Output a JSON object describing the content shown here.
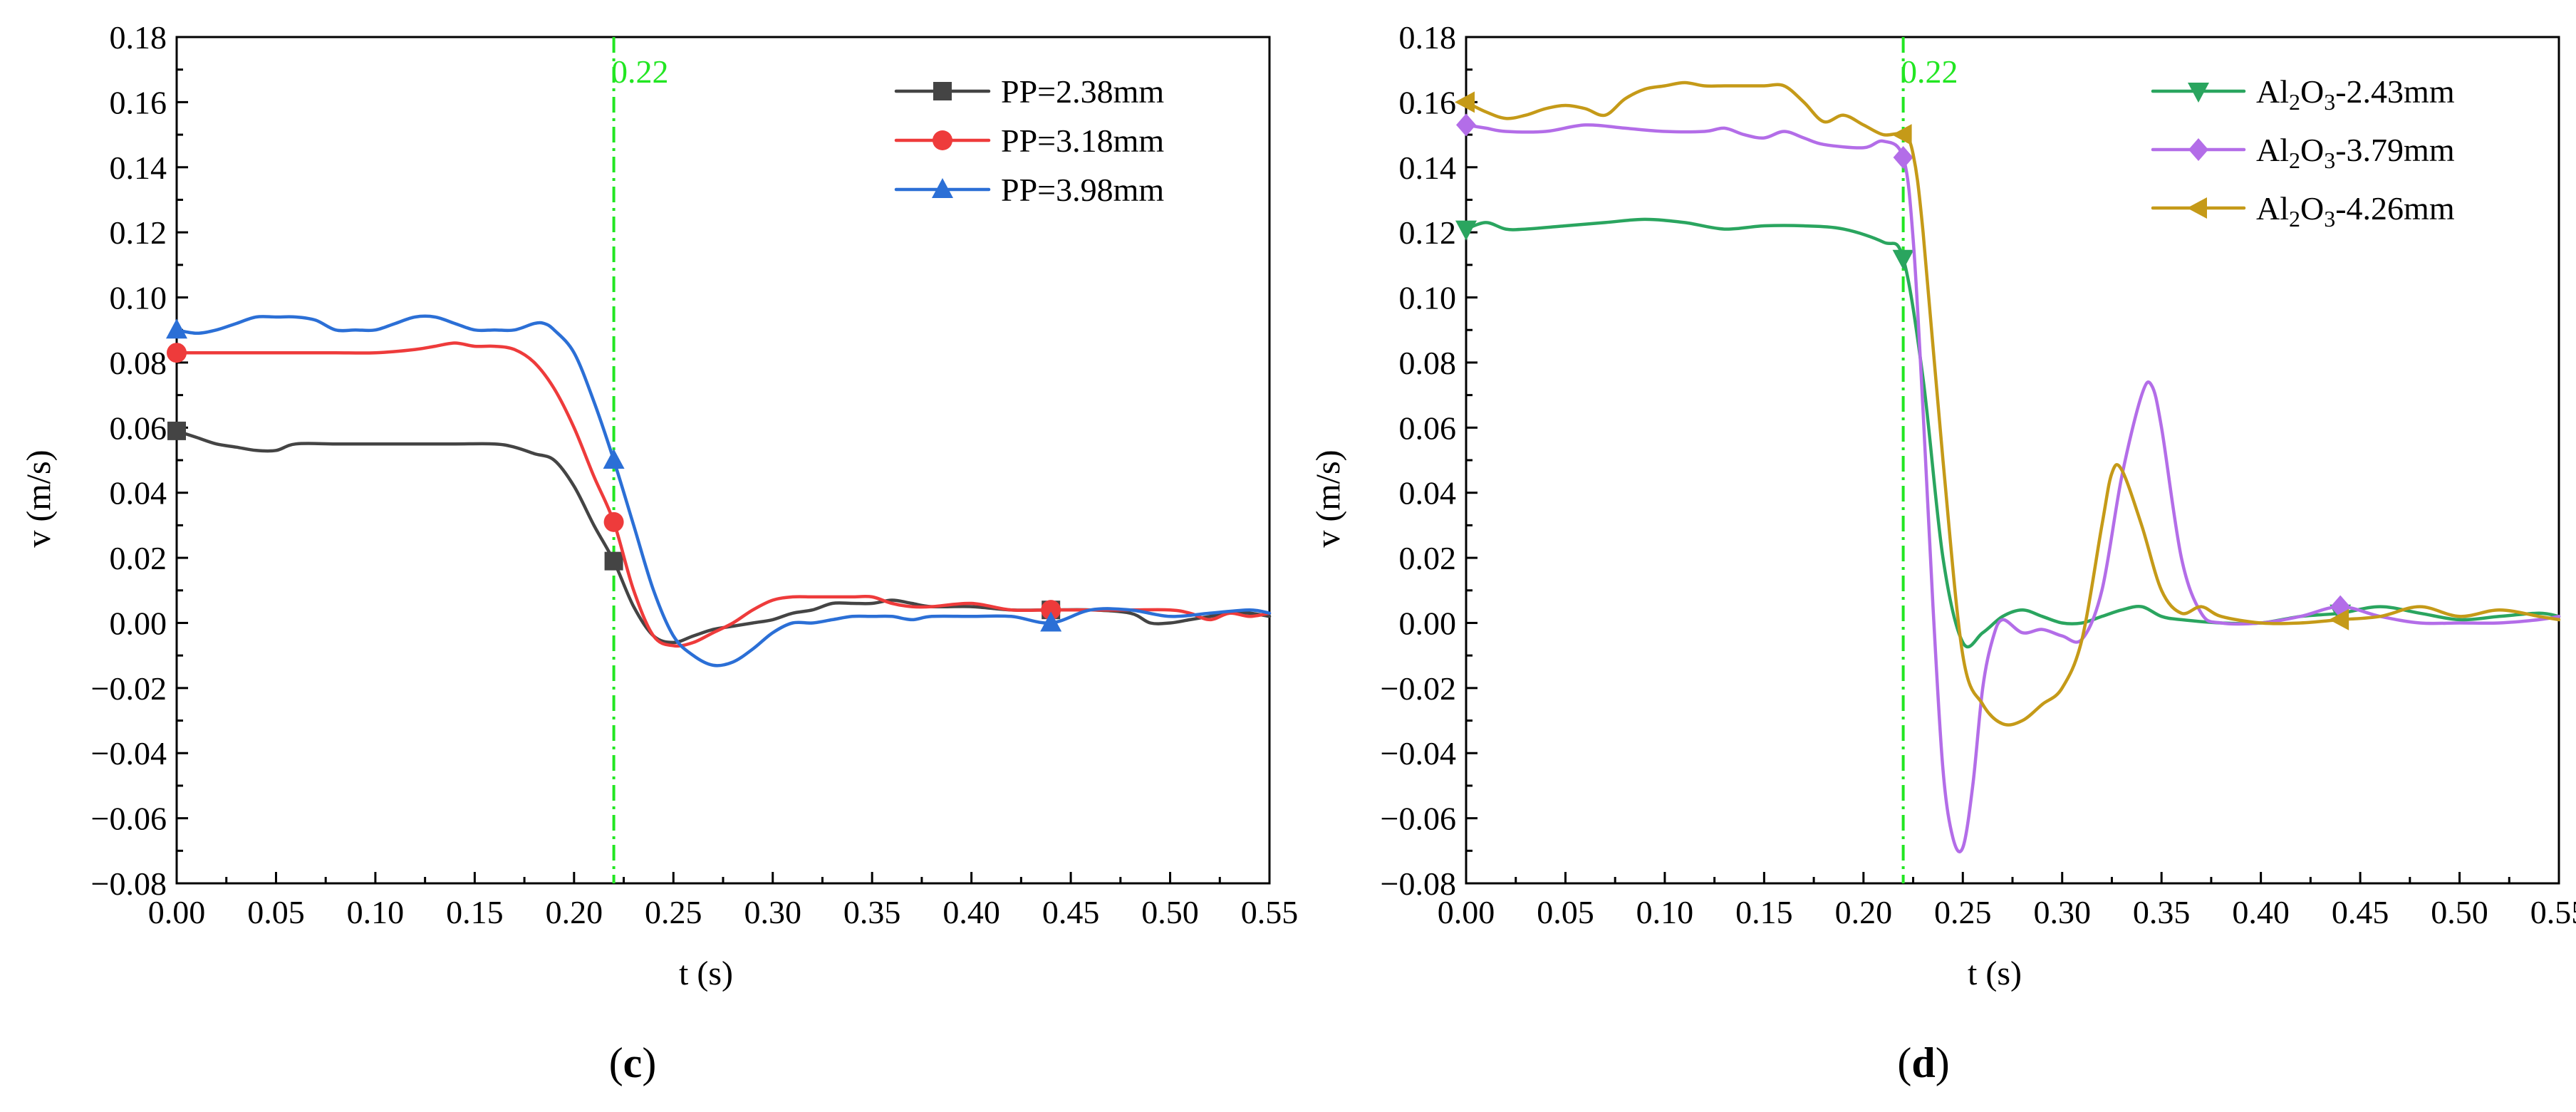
{
  "chart_data": [
    {
      "type": "line",
      "panel_label": "d",
      "panel_label_open": "(",
      "panel_label_close": ")",
      "xlabel": "t (s)",
      "ylabel": "v (m/s)",
      "xlim": [
        0,
        0.55
      ],
      "ylim": [
        -0.08,
        0.18
      ],
      "xticks": [
        "0.00",
        "0.05",
        "0.10",
        "0.15",
        "0.20",
        "0.25",
        "0.30",
        "0.35",
        "0.40",
        "0.45",
        "0.50",
        "0.55"
      ],
      "yticks": [
        "0.18",
        "0.16",
        "0.14",
        "0.12",
        "0.10",
        "0.08",
        "0.06",
        "0.04",
        "0.02",
        "0.00",
        "−0.02",
        "−0.04",
        "−0.06",
        "−0.08"
      ],
      "vline": {
        "x": 0.22,
        "label": "0.22",
        "color": "#22e622"
      },
      "legend_position": "top-right",
      "series": [
        {
          "name": "Al2O3-2.43mm",
          "legend": {
            "base1": "Al",
            "sub1": "2",
            "base2": "O",
            "sub2": "3",
            "suffix": "-2.43mm"
          },
          "color": "#2aa55f",
          "marker": "triangle-down",
          "marker_x": [
            0.0,
            0.22,
            0.44
          ],
          "x": [
            0.0,
            0.01,
            0.02,
            0.03,
            0.05,
            0.07,
            0.09,
            0.11,
            0.13,
            0.15,
            0.17,
            0.19,
            0.21,
            0.22,
            0.23,
            0.24,
            0.25,
            0.26,
            0.27,
            0.28,
            0.29,
            0.3,
            0.31,
            0.32,
            0.33,
            0.34,
            0.35,
            0.36,
            0.38,
            0.4,
            0.42,
            0.44,
            0.46,
            0.48,
            0.5,
            0.52,
            0.54,
            0.55
          ],
          "y": [
            0.121,
            0.123,
            0.121,
            0.121,
            0.122,
            0.123,
            0.124,
            0.123,
            0.121,
            0.122,
            0.122,
            0.121,
            0.117,
            0.112,
            0.075,
            0.02,
            -0.006,
            -0.003,
            0.002,
            0.004,
            0.002,
            0.0,
            0.0,
            0.002,
            0.004,
            0.005,
            0.002,
            0.001,
            0.0,
            0.0,
            0.002,
            0.003,
            0.005,
            0.003,
            0.001,
            0.002,
            0.003,
            0.002
          ]
        },
        {
          "name": "Al2O3-3.79mm",
          "legend": {
            "base1": "Al",
            "sub1": "2",
            "base2": "O",
            "sub2": "3",
            "suffix": "-3.79mm"
          },
          "color": "#b36de8",
          "marker": "diamond",
          "marker_x": [
            0.0,
            0.22,
            0.44
          ],
          "x": [
            0.0,
            0.01,
            0.02,
            0.04,
            0.06,
            0.08,
            0.1,
            0.12,
            0.13,
            0.14,
            0.15,
            0.16,
            0.17,
            0.18,
            0.2,
            0.21,
            0.22,
            0.225,
            0.23,
            0.235,
            0.24,
            0.245,
            0.25,
            0.255,
            0.26,
            0.265,
            0.27,
            0.28,
            0.29,
            0.3,
            0.31,
            0.32,
            0.33,
            0.34,
            0.345,
            0.35,
            0.36,
            0.37,
            0.38,
            0.4,
            0.42,
            0.44,
            0.46,
            0.48,
            0.5,
            0.52,
            0.54,
            0.55
          ],
          "y": [
            0.153,
            0.152,
            0.151,
            0.151,
            0.153,
            0.152,
            0.151,
            0.151,
            0.152,
            0.15,
            0.149,
            0.151,
            0.149,
            0.147,
            0.146,
            0.148,
            0.143,
            0.118,
            0.065,
            0.005,
            -0.045,
            -0.066,
            -0.069,
            -0.05,
            -0.02,
            -0.005,
            0.001,
            -0.003,
            -0.002,
            -0.004,
            -0.005,
            0.01,
            0.045,
            0.07,
            0.073,
            0.06,
            0.02,
            0.003,
            0.0,
            0.0,
            0.002,
            0.005,
            0.002,
            0.0,
            0.0,
            0.0,
            0.001,
            0.002
          ]
        },
        {
          "name": "Al2O3-4.26mm",
          "legend": {
            "base1": "Al",
            "sub1": "2",
            "base2": "O",
            "sub2": "3",
            "suffix": "-4.26mm"
          },
          "color": "#c59a18",
          "marker": "triangle-left",
          "marker_x": [
            0.0,
            0.22,
            0.44
          ],
          "x": [
            0.0,
            0.01,
            0.02,
            0.03,
            0.04,
            0.05,
            0.06,
            0.07,
            0.08,
            0.09,
            0.1,
            0.11,
            0.12,
            0.13,
            0.14,
            0.15,
            0.16,
            0.17,
            0.18,
            0.19,
            0.2,
            0.21,
            0.22,
            0.225,
            0.23,
            0.24,
            0.25,
            0.26,
            0.27,
            0.28,
            0.29,
            0.3,
            0.31,
            0.32,
            0.325,
            0.33,
            0.34,
            0.35,
            0.36,
            0.37,
            0.38,
            0.4,
            0.42,
            0.44,
            0.46,
            0.48,
            0.5,
            0.52,
            0.54,
            0.55
          ],
          "y": [
            0.16,
            0.157,
            0.155,
            0.156,
            0.158,
            0.159,
            0.158,
            0.156,
            0.161,
            0.164,
            0.165,
            0.166,
            0.165,
            0.165,
            0.165,
            0.165,
            0.165,
            0.16,
            0.154,
            0.156,
            0.153,
            0.15,
            0.15,
            0.144,
            0.12,
            0.05,
            -0.01,
            -0.025,
            -0.031,
            -0.03,
            -0.025,
            -0.02,
            -0.005,
            0.03,
            0.046,
            0.047,
            0.03,
            0.01,
            0.003,
            0.005,
            0.002,
            0.0,
            0.0,
            0.001,
            0.002,
            0.005,
            0.002,
            0.004,
            0.002,
            0.001
          ]
        }
      ]
    },
    {
      "type": "line",
      "panel_label": "c",
      "panel_label_open": "(",
      "panel_label_close": ")",
      "xlabel": "t (s)",
      "ylabel": "v (m/s)",
      "xlim": [
        0,
        0.55
      ],
      "ylim": [
        -0.08,
        0.18
      ],
      "xticks": [
        "0.00",
        "0.05",
        "0.10",
        "0.15",
        "0.20",
        "0.25",
        "0.30",
        "0.35",
        "0.40",
        "0.45",
        "0.50",
        "0.55"
      ],
      "yticks": [
        "0.18",
        "0.16",
        "0.14",
        "0.12",
        "0.10",
        "0.08",
        "0.06",
        "0.04",
        "0.02",
        "0.00",
        "−0.02",
        "−0.04",
        "−0.06",
        "−0.08"
      ],
      "vline": {
        "x": 0.22,
        "label": "0.22",
        "color": "#22e622"
      },
      "legend_position": "top-right",
      "series": [
        {
          "name": "PP=2.38mm",
          "color": "#444444",
          "marker": "square",
          "marker_x": [
            0.0,
            0.22,
            0.44
          ],
          "x": [
            0.0,
            0.01,
            0.02,
            0.03,
            0.04,
            0.05,
            0.06,
            0.08,
            0.1,
            0.12,
            0.14,
            0.16,
            0.17,
            0.18,
            0.19,
            0.2,
            0.21,
            0.22,
            0.23,
            0.24,
            0.25,
            0.26,
            0.27,
            0.28,
            0.29,
            0.3,
            0.31,
            0.32,
            0.33,
            0.34,
            0.35,
            0.36,
            0.37,
            0.38,
            0.4,
            0.42,
            0.44,
            0.46,
            0.48,
            0.49,
            0.5,
            0.51,
            0.52,
            0.53,
            0.54,
            0.55
          ],
          "y": [
            0.059,
            0.057,
            0.055,
            0.054,
            0.053,
            0.053,
            0.055,
            0.055,
            0.055,
            0.055,
            0.055,
            0.055,
            0.054,
            0.052,
            0.05,
            0.042,
            0.03,
            0.019,
            0.005,
            -0.004,
            -0.006,
            -0.004,
            -0.002,
            -0.001,
            0.0,
            0.001,
            0.003,
            0.004,
            0.006,
            0.006,
            0.006,
            0.007,
            0.006,
            0.005,
            0.005,
            0.004,
            0.004,
            0.004,
            0.003,
            0.0,
            0.0,
            0.001,
            0.002,
            0.003,
            0.003,
            0.002
          ]
        },
        {
          "name": "PP=3.18mm",
          "color": "#ee3b3b",
          "marker": "circle",
          "marker_x": [
            0.0,
            0.22,
            0.44
          ],
          "x": [
            0.0,
            0.02,
            0.04,
            0.06,
            0.08,
            0.1,
            0.12,
            0.13,
            0.14,
            0.15,
            0.16,
            0.17,
            0.18,
            0.19,
            0.2,
            0.21,
            0.22,
            0.23,
            0.24,
            0.25,
            0.26,
            0.27,
            0.28,
            0.29,
            0.3,
            0.31,
            0.32,
            0.33,
            0.34,
            0.35,
            0.36,
            0.37,
            0.38,
            0.4,
            0.42,
            0.44,
            0.46,
            0.48,
            0.5,
            0.51,
            0.52,
            0.53,
            0.54,
            0.55
          ],
          "y": [
            0.083,
            0.083,
            0.083,
            0.083,
            0.083,
            0.083,
            0.084,
            0.085,
            0.086,
            0.085,
            0.085,
            0.084,
            0.08,
            0.072,
            0.06,
            0.045,
            0.031,
            0.01,
            -0.004,
            -0.007,
            -0.006,
            -0.003,
            0.0,
            0.004,
            0.007,
            0.008,
            0.008,
            0.008,
            0.008,
            0.008,
            0.006,
            0.005,
            0.005,
            0.006,
            0.004,
            0.004,
            0.004,
            0.004,
            0.004,
            0.003,
            0.001,
            0.003,
            0.002,
            0.003
          ]
        },
        {
          "name": "PP=3.98mm",
          "color": "#2b6fd6",
          "marker": "triangle-up",
          "marker_x": [
            0.0,
            0.22,
            0.44
          ],
          "x": [
            0.0,
            0.01,
            0.02,
            0.03,
            0.04,
            0.05,
            0.06,
            0.07,
            0.08,
            0.09,
            0.1,
            0.11,
            0.12,
            0.13,
            0.14,
            0.15,
            0.16,
            0.17,
            0.18,
            0.185,
            0.19,
            0.2,
            0.21,
            0.22,
            0.23,
            0.24,
            0.25,
            0.26,
            0.27,
            0.28,
            0.29,
            0.3,
            0.31,
            0.32,
            0.33,
            0.34,
            0.35,
            0.36,
            0.37,
            0.38,
            0.4,
            0.42,
            0.44,
            0.46,
            0.48,
            0.5,
            0.52,
            0.54,
            0.55
          ],
          "y": [
            0.09,
            0.089,
            0.09,
            0.092,
            0.094,
            0.094,
            0.094,
            0.093,
            0.09,
            0.09,
            0.09,
            0.092,
            0.094,
            0.094,
            0.092,
            0.09,
            0.09,
            0.09,
            0.092,
            0.092,
            0.09,
            0.083,
            0.068,
            0.05,
            0.03,
            0.01,
            -0.004,
            -0.01,
            -0.013,
            -0.012,
            -0.008,
            -0.003,
            0.0,
            0.0,
            0.001,
            0.002,
            0.002,
            0.002,
            0.001,
            0.002,
            0.002,
            0.002,
            0.0,
            0.004,
            0.004,
            0.002,
            0.003,
            0.004,
            0.003
          ]
        }
      ]
    }
  ]
}
